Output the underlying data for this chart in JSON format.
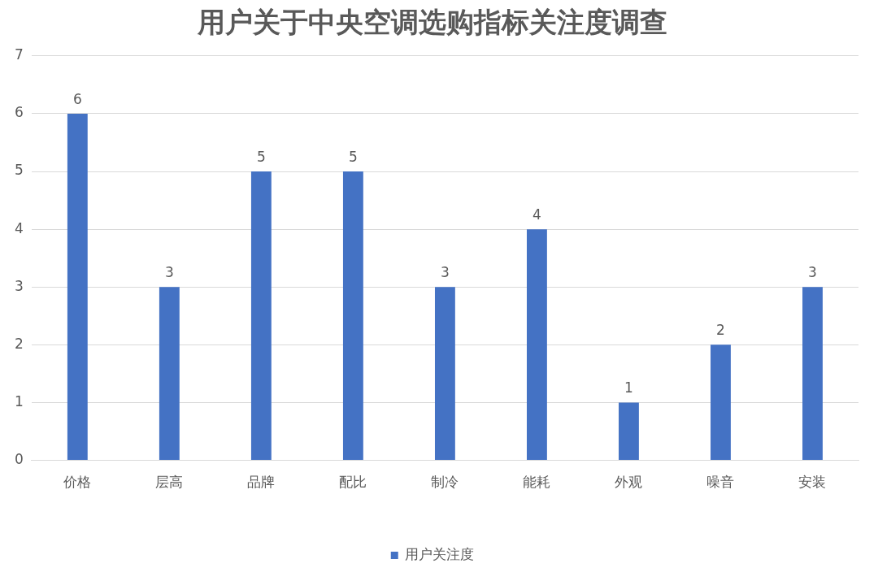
{
  "chart_data": {
    "type": "bar",
    "title": "用户关于中央空调选购指标关注度调查",
    "categories": [
      "价格",
      "层高",
      "品牌",
      "配比",
      "制冷",
      "能耗",
      "外观",
      "噪音",
      "安装"
    ],
    "series": [
      {
        "name": "用户关注度",
        "color": "#4472c4",
        "values": [
          6,
          3,
          5,
          5,
          3,
          4,
          1,
          2,
          3
        ]
      }
    ],
    "ylim": [
      0,
      7
    ],
    "yticks": [
      0,
      1,
      2,
      3,
      4,
      5,
      6,
      7
    ],
    "grid": "y",
    "legend": "bottom",
    "data_labels": true
  }
}
